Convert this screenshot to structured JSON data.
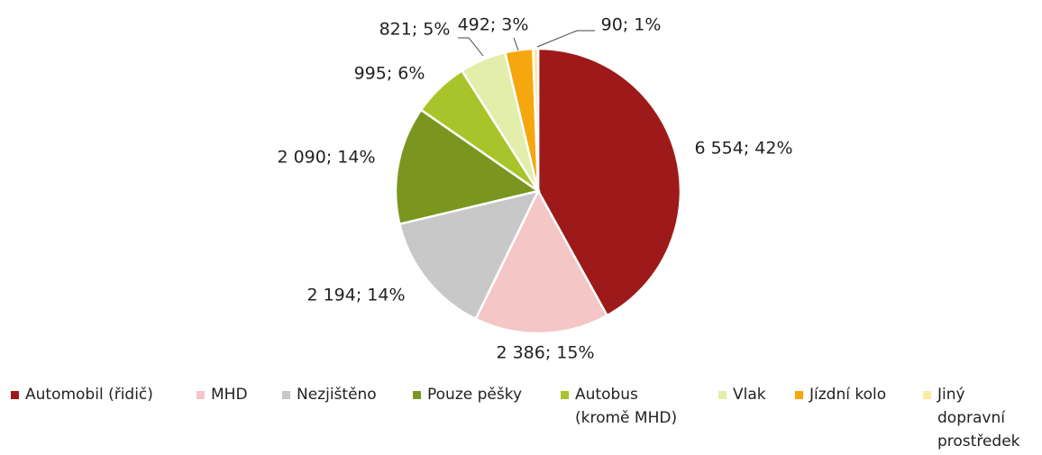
{
  "chart_data": {
    "type": "pie",
    "categories": [
      "Automobil (řidič)",
      "MHD",
      "Nezjištěno",
      "Pouze pěšky",
      "Autobus (kromě MHD)",
      "Vlak",
      "Jízdní kolo",
      "Jiný dopravní prostředek"
    ],
    "values": [
      6554,
      2386,
      2194,
      2090,
      995,
      821,
      492,
      90
    ],
    "value_labels": [
      "6 554; 42%",
      "2 386; 15%",
      "2 194; 14%",
      "2 090; 14%",
      "995; 6%",
      "821; 5%",
      "492; 3%",
      "90; 1%"
    ],
    "colors": [
      "#9e1a1a",
      "#f4c6c6",
      "#c8c8c8",
      "#7a961e",
      "#a8c42a",
      "#e2eeaa",
      "#f5a70d",
      "#fde9a0"
    ],
    "legend": "bottom"
  }
}
